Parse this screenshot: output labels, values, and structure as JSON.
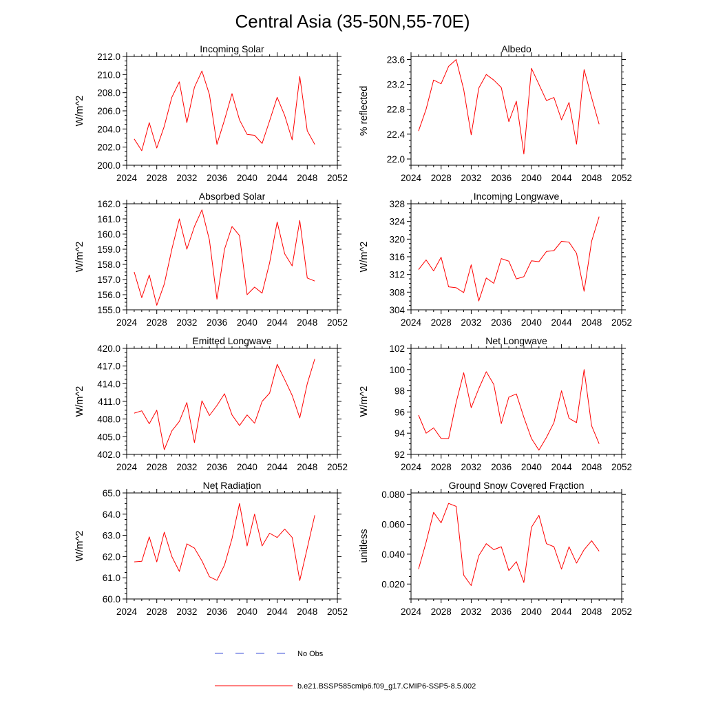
{
  "figure": {
    "title": "Central Asia (35-50N,55-70E)"
  },
  "legend": {
    "position": "bottom",
    "entries": [
      {
        "label": "No Obs",
        "color": "#3b4fd8",
        "style": "dashed"
      },
      {
        "label": "b.e21.BSSP585cmip6.f09_g17.CMIP6-SSP5-8.5.002",
        "color": "#ff0000",
        "style": "solid"
      }
    ]
  },
  "chart_data": [
    {
      "type": "line",
      "title": "Incoming Solar",
      "ylabel": "W/m^2",
      "xlabel": "",
      "xlim": [
        2024,
        2052
      ],
      "ylim": [
        200,
        212
      ],
      "xticks": [
        2024,
        2028,
        2032,
        2036,
        2040,
        2044,
        2048,
        2052
      ],
      "yticks": [
        200,
        202,
        204,
        206,
        208,
        210,
        212
      ],
      "yfmt": 1,
      "grid": false,
      "series": [
        {
          "color": "#ff0000",
          "x": [
            2025,
            2026,
            2027,
            2028,
            2029,
            2030,
            2031,
            2032,
            2033,
            2034,
            2035,
            2036,
            2037,
            2038,
            2039,
            2040,
            2041,
            2042,
            2043,
            2044,
            2045,
            2046,
            2047,
            2048,
            2049
          ],
          "values": [
            202.9,
            201.6,
            204.7,
            201.9,
            204.3,
            207.5,
            209.2,
            204.7,
            208.6,
            210.4,
            207.8,
            202.3,
            205.0,
            207.9,
            205.0,
            203.4,
            203.3,
            202.4,
            204.9,
            207.5,
            205.5,
            202.8,
            209.8,
            203.8,
            202.3
          ]
        }
      ]
    },
    {
      "type": "line",
      "title": "Albedo",
      "ylabel": "% reflected",
      "xlabel": "",
      "xlim": [
        2024,
        2052
      ],
      "ylim": [
        21.9,
        23.65
      ],
      "xticks": [
        2024,
        2028,
        2032,
        2036,
        2040,
        2044,
        2048,
        2052
      ],
      "yticks": [
        22.0,
        22.4,
        22.8,
        23.2,
        23.6
      ],
      "yfmt": 1,
      "grid": false,
      "series": [
        {
          "color": "#ff0000",
          "x": [
            2025,
            2026,
            2027,
            2028,
            2029,
            2030,
            2031,
            2032,
            2033,
            2034,
            2035,
            2036,
            2037,
            2038,
            2039,
            2040,
            2041,
            2042,
            2043,
            2044,
            2045,
            2046,
            2047,
            2048,
            2049
          ],
          "values": [
            22.45,
            22.8,
            23.27,
            23.21,
            23.49,
            23.6,
            23.12,
            22.39,
            23.14,
            23.36,
            23.27,
            23.15,
            22.6,
            22.93,
            22.08,
            23.46,
            23.2,
            22.94,
            22.99,
            22.63,
            22.91,
            22.24,
            23.44,
            22.99,
            22.56
          ]
        }
      ]
    },
    {
      "type": "line",
      "title": "Absorbed Solar",
      "ylabel": "W/m^2",
      "xlabel": "",
      "xlim": [
        2024,
        2052
      ],
      "ylim": [
        155,
        162
      ],
      "xticks": [
        2024,
        2028,
        2032,
        2036,
        2040,
        2044,
        2048,
        2052
      ],
      "yticks": [
        155,
        156,
        157,
        158,
        159,
        160,
        161,
        162
      ],
      "yfmt": 1,
      "grid": false,
      "series": [
        {
          "color": "#ff0000",
          "x": [
            2025,
            2026,
            2027,
            2028,
            2029,
            2030,
            2031,
            2032,
            2033,
            2034,
            2035,
            2036,
            2037,
            2038,
            2039,
            2040,
            2041,
            2042,
            2043,
            2044,
            2045,
            2046,
            2047,
            2048,
            2049
          ],
          "values": [
            157.5,
            155.8,
            157.3,
            155.3,
            156.7,
            159.0,
            161.0,
            159.0,
            160.5,
            161.6,
            159.6,
            155.7,
            159.0,
            160.5,
            159.9,
            156.0,
            156.5,
            156.1,
            158.1,
            160.8,
            158.7,
            157.9,
            160.9,
            157.1,
            156.9
          ]
        }
      ]
    },
    {
      "type": "line",
      "title": "Incoming Longwave",
      "ylabel": "W/m^2",
      "xlabel": "",
      "xlim": [
        2024,
        2052
      ],
      "ylim": [
        304,
        328
      ],
      "xticks": [
        2024,
        2028,
        2032,
        2036,
        2040,
        2044,
        2048,
        2052
      ],
      "yticks": [
        304,
        308,
        312,
        316,
        320,
        324,
        328
      ],
      "yfmt": 0,
      "grid": false,
      "series": [
        {
          "color": "#ff0000",
          "x": [
            2025,
            2026,
            2027,
            2028,
            2029,
            2030,
            2031,
            2032,
            2033,
            2034,
            2035,
            2036,
            2037,
            2038,
            2039,
            2040,
            2041,
            2042,
            2043,
            2044,
            2045,
            2046,
            2047,
            2048,
            2049
          ],
          "values": [
            313.1,
            315.3,
            312.8,
            315.9,
            309.2,
            309.0,
            307.9,
            314.2,
            306.0,
            311.2,
            310.0,
            315.6,
            315.0,
            311.0,
            311.5,
            315.1,
            314.9,
            317.2,
            317.4,
            319.5,
            319.3,
            316.8,
            308.2,
            319.5,
            325.1
          ]
        }
      ]
    },
    {
      "type": "line",
      "title": "Emitted Longwave",
      "ylabel": "W/m^2",
      "xlabel": "",
      "xlim": [
        2024,
        2052
      ],
      "ylim": [
        402,
        420
      ],
      "xticks": [
        2024,
        2028,
        2032,
        2036,
        2040,
        2044,
        2048,
        2052
      ],
      "yticks": [
        402,
        405,
        408,
        411,
        414,
        417,
        420
      ],
      "yfmt": 1,
      "grid": false,
      "series": [
        {
          "color": "#ff0000",
          "x": [
            2025,
            2026,
            2027,
            2028,
            2029,
            2030,
            2031,
            2032,
            2033,
            2034,
            2035,
            2036,
            2037,
            2038,
            2039,
            2040,
            2041,
            2042,
            2043,
            2044,
            2045,
            2046,
            2047,
            2048,
            2049
          ],
          "values": [
            409.0,
            409.4,
            407.2,
            409.5,
            402.8,
            406.0,
            407.6,
            410.8,
            404.0,
            411.1,
            408.6,
            410.3,
            412.3,
            408.7,
            406.9,
            408.7,
            407.3,
            411.0,
            412.4,
            417.3,
            414.7,
            412.0,
            408.2,
            414.0,
            418.2
          ]
        }
      ]
    },
    {
      "type": "line",
      "title": "Net Longwave",
      "ylabel": "W/m^2",
      "xlabel": "",
      "xlim": [
        2024,
        2052
      ],
      "ylim": [
        92,
        102
      ],
      "xticks": [
        2024,
        2028,
        2032,
        2036,
        2040,
        2044,
        2048,
        2052
      ],
      "yticks": [
        92,
        94,
        96,
        98,
        100,
        102
      ],
      "yfmt": 0,
      "grid": false,
      "series": [
        {
          "color": "#ff0000",
          "x": [
            2025,
            2026,
            2027,
            2028,
            2029,
            2030,
            2031,
            2032,
            2033,
            2034,
            2035,
            2036,
            2037,
            2038,
            2039,
            2040,
            2041,
            2042,
            2043,
            2044,
            2045,
            2046,
            2047,
            2048,
            2049
          ],
          "values": [
            95.7,
            94.0,
            94.5,
            93.5,
            93.5,
            96.9,
            99.7,
            96.4,
            98.2,
            99.8,
            98.6,
            94.9,
            97.4,
            97.7,
            95.5,
            93.5,
            92.4,
            93.6,
            95.0,
            98.0,
            95.4,
            95.0,
            100.0,
            94.7,
            93.0
          ]
        }
      ]
    },
    {
      "type": "line",
      "title": "Net Radiation",
      "ylabel": "W/m^2",
      "xlabel": "",
      "xlim": [
        2024,
        2052
      ],
      "ylim": [
        60,
        65
      ],
      "xticks": [
        2024,
        2028,
        2032,
        2036,
        2040,
        2044,
        2048,
        2052
      ],
      "yticks": [
        60,
        61,
        62,
        63,
        64,
        65
      ],
      "yfmt": 1,
      "grid": false,
      "series": [
        {
          "color": "#ff0000",
          "x": [
            2025,
            2026,
            2027,
            2028,
            2029,
            2030,
            2031,
            2032,
            2033,
            2034,
            2035,
            2036,
            2037,
            2038,
            2039,
            2040,
            2041,
            2042,
            2043,
            2044,
            2045,
            2046,
            2047,
            2048,
            2049
          ],
          "values": [
            61.75,
            61.78,
            62.93,
            61.75,
            63.15,
            62.0,
            61.3,
            62.6,
            62.4,
            61.8,
            61.05,
            60.88,
            61.6,
            62.85,
            64.5,
            62.5,
            64.0,
            62.5,
            63.1,
            62.9,
            63.3,
            62.9,
            60.87,
            62.4,
            63.95
          ]
        }
      ]
    },
    {
      "type": "line",
      "title": "Ground Snow Covered Fraction",
      "ylabel": "unitless",
      "xlabel": "",
      "xlim": [
        2024,
        2052
      ],
      "ylim": [
        0.01,
        0.081
      ],
      "xticks": [
        2024,
        2028,
        2032,
        2036,
        2040,
        2044,
        2048,
        2052
      ],
      "yticks": [
        0.02,
        0.04,
        0.06,
        0.08
      ],
      "yfmt": 3,
      "grid": false,
      "series": [
        {
          "color": "#ff0000",
          "x": [
            2025,
            2026,
            2027,
            2028,
            2029,
            2030,
            2031,
            2032,
            2033,
            2034,
            2035,
            2036,
            2037,
            2038,
            2039,
            2040,
            2041,
            2042,
            2043,
            2044,
            2045,
            2046,
            2047,
            2048,
            2049
          ],
          "values": [
            0.03,
            0.048,
            0.068,
            0.061,
            0.074,
            0.072,
            0.026,
            0.019,
            0.039,
            0.047,
            0.043,
            0.045,
            0.029,
            0.035,
            0.021,
            0.058,
            0.066,
            0.047,
            0.045,
            0.03,
            0.045,
            0.034,
            0.043,
            0.049,
            0.042
          ]
        }
      ]
    }
  ]
}
